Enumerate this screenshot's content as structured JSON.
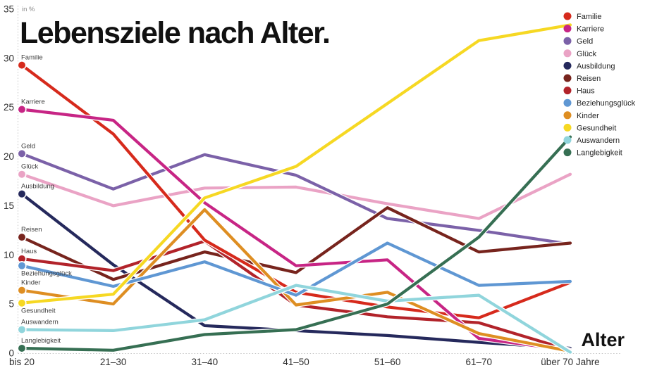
{
  "chart_data": {
    "type": "line",
    "title": "Lebensziele nach Alter.",
    "xlabel": "Alter",
    "unit_label": "in %",
    "categories": [
      "bis 20",
      "21–30",
      "31–40",
      "41–50",
      "51–60",
      "61–70",
      "über 70 Jahre"
    ],
    "y_ticks": [
      0,
      5,
      10,
      15,
      20,
      25,
      30,
      35
    ],
    "ylim": [
      0,
      35
    ],
    "grid": "dotted left axis and zero baseline only",
    "legend_position": "top-right",
    "series": [
      {
        "name": "Familie",
        "color": "#d62a1c",
        "values": [
          29.3,
          22.3,
          11.5,
          6.2,
          4.7,
          3.6,
          7.2
        ],
        "label_below": false
      },
      {
        "name": "Karriere",
        "color": "#c72585",
        "values": [
          24.8,
          23.7,
          15.3,
          8.9,
          9.5,
          1.5,
          0.3
        ],
        "label_below": false
      },
      {
        "name": "Geld",
        "color": "#7b61a8",
        "values": [
          20.3,
          16.7,
          20.2,
          18.1,
          13.7,
          12.5,
          11.1
        ],
        "label_below": false
      },
      {
        "name": "Glück",
        "color": "#eaa3c5",
        "values": [
          18.2,
          15.0,
          16.8,
          16.9,
          15.2,
          13.7,
          18.2
        ],
        "label_below": false
      },
      {
        "name": "Ausbildung",
        "color": "#25295c",
        "values": [
          16.2,
          9.0,
          2.8,
          2.3,
          1.8,
          1.1,
          0.5
        ],
        "label_below": false
      },
      {
        "name": "Reisen",
        "color": "#77241d",
        "values": [
          11.8,
          7.5,
          10.3,
          8.2,
          14.8,
          10.3,
          11.2
        ],
        "label_below": false
      },
      {
        "name": "Haus",
        "color": "#b2232a",
        "values": [
          9.6,
          8.4,
          11.4,
          4.9,
          3.7,
          3.1,
          0.3
        ],
        "label_below": false
      },
      {
        "name": "Beziehungsglück",
        "color": "#5f97d3",
        "values": [
          8.9,
          6.8,
          9.3,
          5.9,
          11.2,
          6.9,
          7.3
        ],
        "label_below": true
      },
      {
        "name": "Kinder",
        "color": "#de8e22",
        "values": [
          6.4,
          5.0,
          14.6,
          4.9,
          6.2,
          2.0,
          0.2
        ],
        "label_below": false
      },
      {
        "name": "Gesundheit",
        "color": "#f6d823",
        "values": [
          5.1,
          6.0,
          15.8,
          19.0,
          25.4,
          31.8,
          33.4
        ],
        "label_below": true
      },
      {
        "name": "Auswandern",
        "color": "#90d5dc",
        "values": [
          2.4,
          2.3,
          3.4,
          6.9,
          5.3,
          5.9,
          0.1
        ],
        "label_below": false
      },
      {
        "name": "Langlebigkeit",
        "color": "#366f53",
        "values": [
          0.5,
          0.3,
          1.9,
          2.4,
          5.0,
          11.8,
          22.0
        ],
        "label_below": false
      }
    ]
  }
}
